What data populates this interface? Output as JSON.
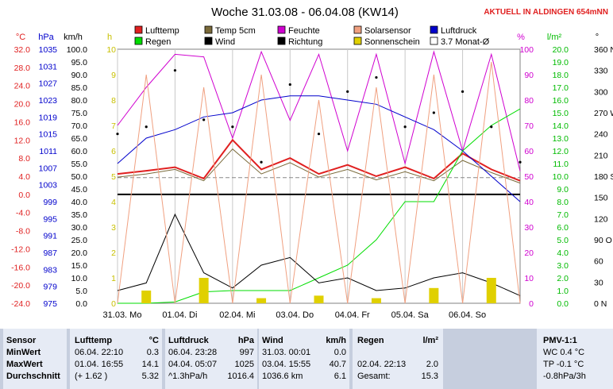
{
  "title": "Woche 31.03.08 - 06.04.08 (KW14)",
  "live_label": "AKTUELL IN ALDINGEN 654mNN",
  "colors": {
    "lufttemp": "#e02020",
    "temp5cm": "#7a6a3a",
    "feuchte": "#d000d0",
    "wind": "#000000",
    "richtung": "#000000",
    "luftdruck": "#0000cc",
    "regen": "#00dd00",
    "solarsensor": "#f0a080",
    "sonnenschein": "#e0d000",
    "monat": "#ffffff"
  },
  "legend": [
    {
      "label": "Lufttemp",
      "color": "#e02020"
    },
    {
      "label": "Temp 5cm",
      "color": "#7a6a3a"
    },
    {
      "label": "Feuchte",
      "color": "#d000d0"
    },
    {
      "label": "Solarsensor",
      "color": "#f0a080"
    },
    {
      "label": "Luftdruck",
      "color": "#0000cc"
    },
    {
      "label": "Regen",
      "color": "#00dd00"
    },
    {
      "label": "Wind",
      "color": "#000000"
    },
    {
      "label": "Richtung",
      "color": "#000000"
    },
    {
      "label": "Sonnenschein",
      "color": "#e0d000"
    },
    {
      "label": "3.7 Monat-Ø",
      "color": "#ffffff"
    }
  ],
  "axes": {
    "celsius": {
      "unit": "°C",
      "ticks": [
        "32.0",
        "28.0",
        "24.0",
        "20.0",
        "16.0",
        "12.0",
        "8.0",
        "4.0",
        "0.0",
        "-4.0",
        "-8.0",
        "-12.0",
        "-16.0",
        "-20.0",
        "-24.0"
      ]
    },
    "hpa": {
      "unit": "hPa",
      "ticks": [
        "1035",
        "1031",
        "1027",
        "1023",
        "1019",
        "1015",
        "1011",
        "1007",
        "1003",
        "999",
        "995",
        "991",
        "987",
        "983",
        "979",
        "975"
      ]
    },
    "kmh": {
      "unit": "km/h",
      "ticks": [
        "100.0",
        "95.0",
        "90.0",
        "85.0",
        "80.0",
        "75.0",
        "70.0",
        "65.0",
        "60.0",
        "55.0",
        "50.0",
        "45.0",
        "40.0",
        "35.0",
        "30.0",
        "25.0",
        "20.0",
        "15.0",
        "10.0",
        "5.0",
        "0.0"
      ]
    },
    "h": {
      "unit": "h",
      "ticks": [
        "10",
        "9",
        "8",
        "7",
        "6",
        "5",
        "4",
        "3",
        "2",
        "1",
        "0"
      ]
    },
    "percent": {
      "unit": "%",
      "ticks": [
        "100",
        "90",
        "80",
        "70",
        "60",
        "50",
        "40",
        "30",
        "20",
        "10",
        "0"
      ]
    },
    "lm2": {
      "unit": "l/m²",
      "ticks": [
        "20.0",
        "19.0",
        "18.0",
        "17.0",
        "16.0",
        "15.0",
        "14.0",
        "13.0",
        "12.0",
        "11.0",
        "10.0",
        "9.0",
        "8.0",
        "7.0",
        "6.0",
        "5.0",
        "4.0",
        "3.0",
        "2.0",
        "1.0",
        "0.0"
      ]
    },
    "deg": {
      "unit": "°",
      "ticks": [
        "360 N",
        "330",
        "300",
        "270 W",
        "240",
        "210",
        "180 S",
        "150",
        "120",
        "90 O",
        "60",
        "30",
        "0 N"
      ]
    },
    "x_days": [
      "31.03. Mo",
      "01.04. Di",
      "02.04. Mi",
      "03.04. Do",
      "04.04. Fr",
      "05.04. Sa",
      "06.04. So"
    ]
  },
  "chart_data": {
    "type": "line",
    "title": "Woche 31.03.08 - 06.04.08 (KW14)",
    "x": [
      0,
      0.5,
      1,
      1.5,
      2,
      2.5,
      3,
      3.5,
      4,
      4.5,
      5,
      5.5,
      6,
      6.5,
      7
    ],
    "series": [
      {
        "name": "Lufttemp",
        "unit": "°C",
        "values": [
          4.5,
          5.2,
          6.0,
          3.5,
          12.0,
          5.5,
          8.0,
          4.5,
          6.5,
          4.0,
          6.0,
          3.5,
          9.0,
          5.5,
          3.0
        ]
      },
      {
        "name": "Temp 5cm",
        "unit": "°C",
        "values": [
          3.8,
          4.5,
          5.5,
          3.0,
          10.0,
          4.5,
          7.0,
          3.8,
          5.5,
          3.2,
          5.0,
          3.0,
          7.5,
          4.8,
          2.5
        ]
      },
      {
        "name": "Feuchte",
        "unit": "%",
        "values": [
          70,
          85,
          98,
          97,
          65,
          99,
          72,
          98,
          60,
          98,
          55,
          99,
          60,
          98,
          52
        ]
      },
      {
        "name": "Luftdruck",
        "unit": "hPa",
        "values": [
          1008,
          1014,
          1016,
          1019,
          1020,
          1023,
          1024,
          1024,
          1023,
          1022,
          1019,
          1016,
          1011,
          1005,
          999
        ]
      },
      {
        "name": "Regen",
        "unit": "l/m²",
        "values": [
          0,
          0,
          0.1,
          0.9,
          1.0,
          1.0,
          1.0,
          2.0,
          3.0,
          5.0,
          8.0,
          8.0,
          12.0,
          14.0,
          15.3
        ]
      },
      {
        "name": "Wind",
        "unit": "km/h",
        "values": [
          5,
          8,
          35,
          12,
          6,
          15,
          18,
          8,
          10,
          5,
          6,
          10,
          12,
          8,
          3
        ]
      },
      {
        "name": "Richtung",
        "unit": "°",
        "values": [
          240,
          250,
          330,
          260,
          250,
          200,
          310,
          240,
          300,
          320,
          250,
          270,
          300,
          250,
          200
        ]
      },
      {
        "name": "Solarsensor",
        "unit": "%",
        "values": [
          0,
          90,
          0,
          85,
          0,
          90,
          0,
          80,
          0,
          85,
          0,
          90,
          0,
          95,
          0
        ]
      },
      {
        "name": "Sonnenschein",
        "unit": "h",
        "values": [
          0,
          0.5,
          0,
          1.0,
          0,
          0.2,
          0,
          0.3,
          0,
          0.2,
          0,
          0.6,
          0,
          1.0,
          0
        ]
      }
    ],
    "reference_lines": [
      {
        "name": "3.7 Monat-Ø",
        "unit": "°C",
        "value": 3.7
      },
      {
        "name": "",
        "unit": "°C",
        "value": 0.0
      }
    ]
  },
  "table": {
    "sensor": {
      "header": "Sensor",
      "rows": [
        "MinWert",
        "MaxWert",
        "Durchschnitt"
      ]
    },
    "lufttemp": {
      "header": "Lufttemp",
      "unit": "°C",
      "rows": [
        [
          "06.04.  22:10",
          "0.3"
        ],
        [
          "01.04.  16:55",
          "14.1"
        ],
        [
          "(+ 1.62 )",
          "5.32"
        ]
      ]
    },
    "luftdruck": {
      "header": "Luftdruck",
      "unit": "hPa",
      "rows": [
        [
          "06.04.  23:28",
          "997"
        ],
        [
          "04.04.  05:07",
          "1025"
        ],
        [
          "^1.3hPa/h",
          "1016.4"
        ]
      ]
    },
    "wind": {
      "header": "Wind",
      "unit": "km/h",
      "rows": [
        [
          "31.03.  00:01",
          "0.0"
        ],
        [
          "03.04.  15:55",
          "40.7"
        ],
        [
          "1036.6 km",
          "6.1"
        ]
      ]
    },
    "regen": {
      "header": "Regen",
      "unit": "l/m²",
      "rows": [
        [
          "",
          ""
        ],
        [
          "02.04.  22:13",
          "2.0"
        ],
        [
          "Gesamt:",
          "15.3"
        ]
      ]
    },
    "pmv": {
      "header": "PMV-1:1",
      "rows": [
        "WC 0.4 °C",
        "TP -0.1 °C",
        "-0.8hPa/3h"
      ]
    }
  }
}
